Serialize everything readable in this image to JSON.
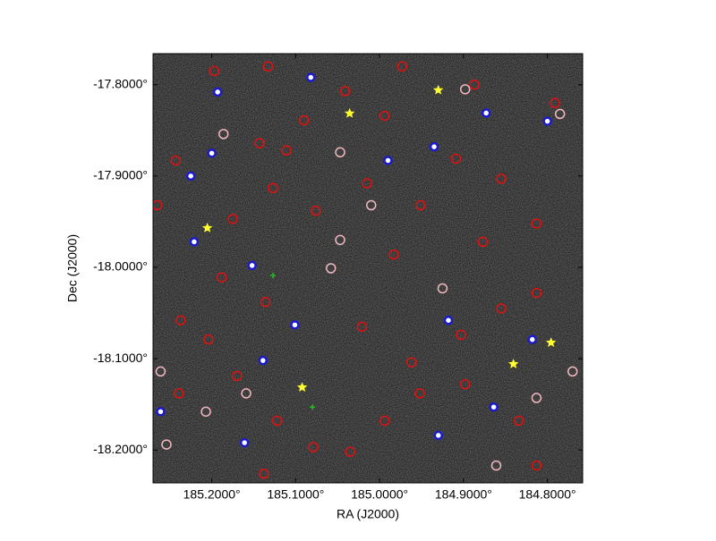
{
  "chart_data": {
    "type": "scatter",
    "xlabel": "RA (J2000)",
    "ylabel": "Dec (J2000)",
    "xlim": [
      185.27,
      184.758
    ],
    "ylim": [
      -18.236,
      -17.766
    ],
    "xticks": [
      {
        "value": 185.2,
        "label": "185.2000°"
      },
      {
        "value": 185.1,
        "label": "185.1000°"
      },
      {
        "value": 185.0,
        "label": "185.0000°"
      },
      {
        "value": 184.9,
        "label": "184.9000°"
      },
      {
        "value": 184.8,
        "label": "184.8000°"
      }
    ],
    "yticks": [
      {
        "value": -17.8,
        "label": "-17.8000°"
      },
      {
        "value": -17.9,
        "label": "-17.9000°"
      },
      {
        "value": -18.0,
        "label": "-18.0000°"
      },
      {
        "value": -18.1,
        "label": "-18.1000°"
      },
      {
        "value": -18.2,
        "label": "-18.2000°"
      }
    ],
    "series": [
      {
        "color": "#e01010",
        "marker": "ring",
        "x": [
          185.243,
          185.143,
          185.111,
          185.175,
          185.127,
          185.041,
          184.994,
          185.09,
          184.909,
          184.855,
          184.813,
          184.877,
          184.983,
          185.076,
          185.015,
          184.951,
          185.188,
          185.136,
          185.237,
          185.204,
          185.021,
          184.962,
          184.903,
          184.855,
          184.813,
          185.17,
          185.122,
          185.079,
          185.035,
          184.994,
          184.952,
          184.898,
          184.834,
          184.813,
          185.138,
          185.239,
          185.265,
          185.197,
          185.133,
          184.973,
          184.887,
          184.791
        ],
        "values": [
          -17.883,
          -17.864,
          -17.872,
          -17.947,
          -17.913,
          -17.807,
          -17.834,
          -17.839,
          -17.881,
          -17.903,
          -17.952,
          -17.972,
          -17.986,
          -17.938,
          -17.908,
          -17.932,
          -18.011,
          -18.038,
          -18.058,
          -18.079,
          -18.065,
          -18.104,
          -18.074,
          -18.045,
          -18.028,
          -18.119,
          -18.168,
          -18.197,
          -18.202,
          -18.168,
          -18.138,
          -18.128,
          -18.168,
          -18.217,
          -18.226,
          -18.138,
          -17.932,
          -17.785,
          -17.78,
          -17.78,
          -17.8,
          -17.82
        ]
      },
      {
        "color": "#f2b8c0",
        "marker": "ring",
        "x": [
          185.186,
          185.047,
          185.01,
          185.047,
          185.058,
          184.925,
          184.77,
          184.813,
          184.861,
          185.261,
          185.207,
          185.254,
          184.898,
          184.785,
          185.159
        ],
        "values": [
          -17.854,
          -17.874,
          -17.932,
          -17.97,
          -18.001,
          -18.023,
          -18.114,
          -18.143,
          -18.217,
          -18.114,
          -18.158,
          -18.194,
          -17.805,
          -17.832,
          -18.138
        ]
      },
      {
        "color": "#1a1ad0",
        "marker": "dot",
        "x": [
          185.193,
          185.082,
          185.225,
          185.2,
          185.221,
          185.152,
          184.99,
          184.935,
          184.873,
          184.8,
          184.918,
          184.818,
          185.101,
          185.139,
          185.261,
          185.161,
          184.93,
          184.864
        ],
        "values": [
          -17.808,
          -17.792,
          -17.9,
          -17.875,
          -17.972,
          -17.998,
          -17.883,
          -17.868,
          -17.831,
          -17.84,
          -18.058,
          -18.079,
          -18.063,
          -18.102,
          -18.158,
          -18.192,
          -18.184,
          -18.153
        ]
      },
      {
        "color": "#ffff30",
        "marker": "star",
        "x": [
          185.2053,
          185.0357,
          184.9301,
          185.0923,
          184.8405,
          184.7957
        ],
        "values": [
          -17.9569,
          -17.8314,
          -17.8059,
          -18.1314,
          -18.1059,
          -18.0824
        ]
      },
      {
        "color": "#20c020",
        "marker": "cross",
        "x": [
          185.08,
          185.127
        ],
        "values": [
          -18.153,
          -18.009
        ]
      }
    ]
  }
}
